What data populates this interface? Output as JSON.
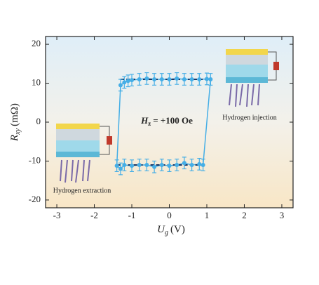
{
  "chart_data": {
    "type": "line",
    "ylabel": {
      "symbol": "R",
      "subscript": "xy",
      "unit": "(mΩ)"
    },
    "xlabel": {
      "symbol": "U",
      "subscript": "g",
      "unit": "(V)"
    },
    "annotation": {
      "symbol": "H",
      "subscript": "z",
      "text": "= +100 Oe"
    },
    "inset_labels": [
      "Hydrogen injection",
      "Hydrogen extraction"
    ],
    "xlim": [
      -3.3,
      3.3
    ],
    "xticks": [
      -3,
      -2,
      -1,
      0,
      1,
      2,
      3
    ],
    "ylim": [
      -22,
      22
    ],
    "yticks": [
      -20,
      -10,
      0,
      10,
      20
    ],
    "series": [
      {
        "color": "#45aee6",
        "x": [
          -1.3,
          -1.2,
          -1.1,
          -1.0,
          -0.8,
          -0.6,
          -0.4,
          -0.2,
          0,
          0.2,
          0.4,
          0.6,
          0.8,
          1.0,
          1.1,
          0.9,
          0.8,
          0.6,
          0.4,
          0.2,
          0,
          -0.2,
          -0.4,
          -0.6,
          -0.8,
          -1.0,
          -1.2,
          -1.3,
          -1.4
        ],
        "values": [
          9.5,
          10.2,
          10.6,
          10.8,
          11,
          11.2,
          11,
          11,
          11,
          11.2,
          11,
          11,
          11,
          11.1,
          11,
          -11,
          -10.8,
          -11,
          -10.5,
          -11,
          -11.2,
          -11,
          -11.5,
          -11,
          -11,
          -11.2,
          -11,
          -12,
          -11.2
        ],
        "errors": [
          1.5,
          1.5,
          1.5,
          1.5,
          1.5,
          1.5,
          1.5,
          1.5,
          1.5,
          1.5,
          1.5,
          1.5,
          1.5,
          1.5,
          1.5,
          1.5,
          1.5,
          1.5,
          1.5,
          1.5,
          1.5,
          1.5,
          1.5,
          1.5,
          1.5,
          1.5,
          1.5,
          1.5,
          1.5
        ]
      }
    ],
    "fit_lines": {
      "color": "#1b3563",
      "lines": [
        {
          "x": [
            -1.3,
            1.1
          ],
          "y": [
            11,
            11
          ]
        },
        {
          "x": [
            -1.4,
            0.9
          ],
          "y": [
            -11,
            -11
          ]
        }
      ]
    }
  }
}
